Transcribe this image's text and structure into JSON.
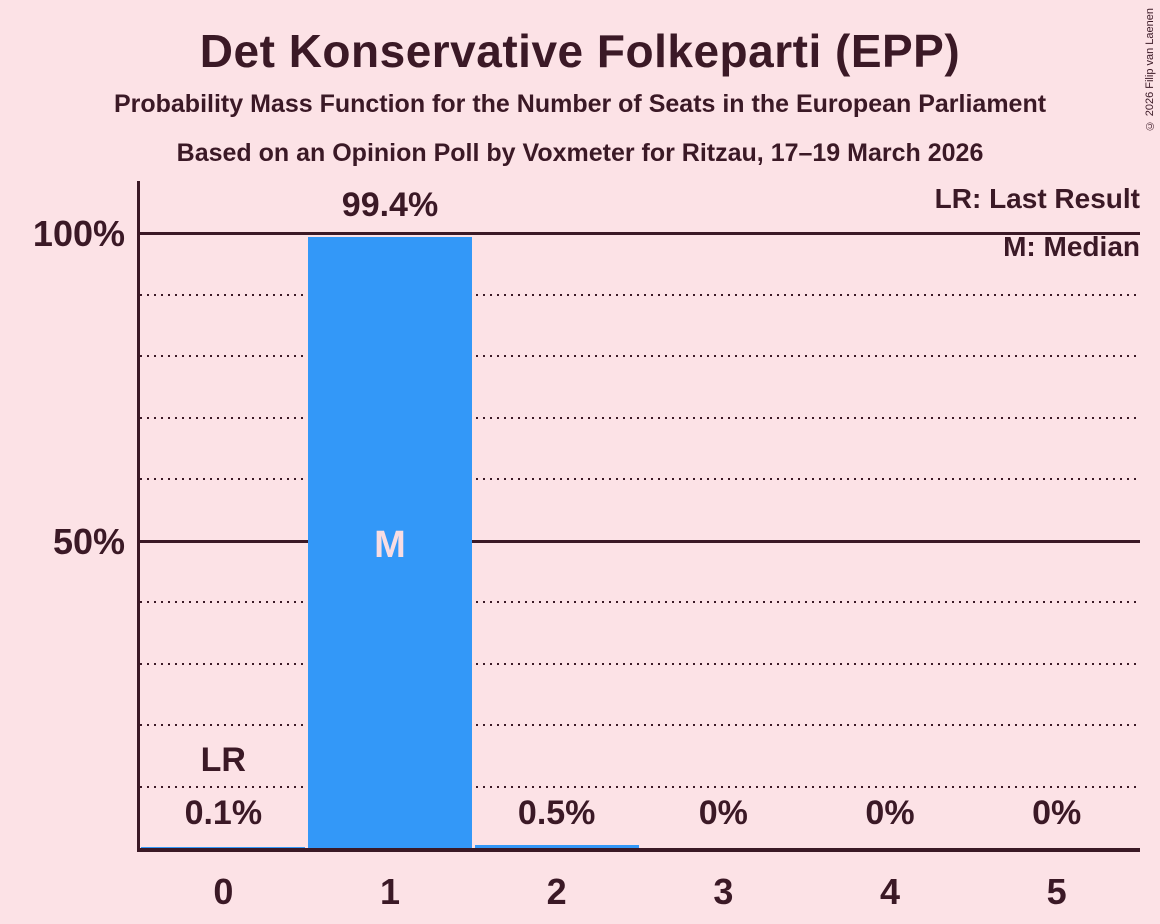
{
  "copyright": "© 2026 Filip van Laenen",
  "chart_data": {
    "type": "bar",
    "title": "Det Konservative Folkeparti (EPP)",
    "subtitle": "Probability Mass Function for the Number of Seats in the European Parliament",
    "subtitle2": "Based on an Opinion Poll by Voxmeter for Ritzau, 17–19 March 2026",
    "xlabel": "",
    "ylabel": "",
    "categories": [
      "0",
      "1",
      "2",
      "3",
      "4",
      "5"
    ],
    "values": [
      0.1,
      99.4,
      0.5,
      0,
      0,
      0
    ],
    "value_labels": [
      "0.1%",
      "99.4%",
      "0.5%",
      "0%",
      "0%",
      "0%"
    ],
    "ylim": [
      0,
      100
    ],
    "y_tick_labels": [
      {
        "pct": 100,
        "label": "100%"
      },
      {
        "pct": 50,
        "label": "50%"
      }
    ],
    "gridline_step_pct": 10,
    "solid_line_pcts": [
      50,
      100
    ],
    "grid": true,
    "legend_position": "top-right",
    "legend": [
      {
        "label": "LR: Last Result"
      },
      {
        "label": "M: Median"
      }
    ],
    "markers": {
      "last_result": {
        "category_index": 0,
        "label": "LR"
      },
      "median": {
        "category_index": 1,
        "label": "M"
      }
    },
    "colors": {
      "background": "#fce2e6",
      "bar": "#3398f8",
      "text": "#3b1926",
      "median_text": "#f8dde3"
    }
  }
}
